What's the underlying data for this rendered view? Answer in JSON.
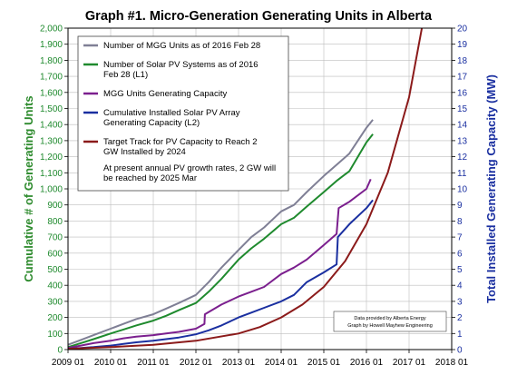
{
  "chart_data": {
    "type": "line",
    "title": "Graph #1. Micro-Generation Generating Units in Alberta",
    "ylabel": "Cumulative # of Generating Units",
    "ylabel_right": "Total Installed Generating Capacity (MW)",
    "xlim": [
      2009,
      2018
    ],
    "ylim": [
      0,
      2000
    ],
    "ylim_right": [
      0,
      20
    ],
    "x_ticks": [
      "2009 01",
      "2010 01",
      "2011 01",
      "2012 01",
      "2013 01",
      "2014 01",
      "2015 01",
      "2016 01",
      "2017 01",
      "2018 01"
    ],
    "y_ticks": [
      "0",
      "100",
      "200",
      "300",
      "400",
      "500",
      "600",
      "700",
      "800",
      "900",
      "1,000",
      "1,100",
      "1,200",
      "1,300",
      "1,400",
      "1,500",
      "1,600",
      "1,700",
      "1,800",
      "1,900",
      "2,000"
    ],
    "y2_ticks": [
      "0",
      "1",
      "2",
      "3",
      "4",
      "5",
      "6",
      "7",
      "8",
      "9",
      "10",
      "11",
      "12",
      "13",
      "14",
      "15",
      "16",
      "17",
      "18",
      "19",
      "20"
    ],
    "grid": true,
    "legend_position": "top-left",
    "legend_items": [
      {
        "label": "Number of MGG Units as of 2016 Feb 28",
        "color": "#7f7f95"
      },
      {
        "label": "Number of Solar PV Systems as of 2016 Feb 28 (L1)",
        "color": "#1f8a2e"
      },
      {
        "label": "MGG Units Generating Capacity",
        "color": "#7b1f8e"
      },
      {
        "label": "Cumulative Installed Solar PV Array Generating Capacity (L2)",
        "color": "#1a2fa0"
      },
      {
        "label": "Target Track for PV Capacity to Reach 2 GW Installed by 2024",
        "color": "#8b1a1a"
      }
    ],
    "annotation": "At present annual PV growth rates, 2 GW will be reached by 2025 Mar",
    "credits": [
      "Data provided by Alberta Energy",
      "Graph by Howell Mayhew Engineering"
    ],
    "series": [
      {
        "axis": "left",
        "color": "#7f7f95",
        "x": [
          2009.0,
          2009.3,
          2009.6,
          2010.0,
          2010.3,
          2010.6,
          2011.0,
          2011.3,
          2011.6,
          2012.0,
          2012.3,
          2012.6,
          2013.0,
          2013.3,
          2013.6,
          2014.0,
          2014.3,
          2014.6,
          2015.0,
          2015.3,
          2015.6,
          2016.0,
          2016.15
        ],
        "values": [
          30,
          60,
          90,
          130,
          160,
          190,
          220,
          255,
          290,
          340,
          420,
          510,
          620,
          700,
          760,
          860,
          900,
          980,
          1080,
          1150,
          1220,
          1380,
          1430
        ]
      },
      {
        "axis": "left",
        "color": "#1f8a2e",
        "x": [
          2009.0,
          2009.3,
          2009.6,
          2010.0,
          2010.3,
          2010.6,
          2011.0,
          2011.3,
          2011.6,
          2012.0,
          2012.3,
          2012.6,
          2013.0,
          2013.3,
          2013.6,
          2014.0,
          2014.3,
          2014.6,
          2015.0,
          2015.3,
          2015.6,
          2016.0,
          2016.15
        ],
        "values": [
          15,
          40,
          65,
          100,
          125,
          150,
          180,
          210,
          245,
          290,
          360,
          440,
          560,
          630,
          690,
          780,
          820,
          890,
          980,
          1050,
          1110,
          1290,
          1340
        ]
      },
      {
        "axis": "right",
        "color": "#7b1f8e",
        "x": [
          2009.0,
          2009.3,
          2009.6,
          2010.0,
          2010.3,
          2010.6,
          2011.0,
          2011.3,
          2011.6,
          2012.0,
          2012.2,
          2012.21,
          2012.6,
          2013.0,
          2013.3,
          2013.6,
          2014.0,
          2014.3,
          2014.6,
          2015.0,
          2015.3,
          2015.35,
          2015.6,
          2016.0,
          2016.1
        ],
        "values": [
          0.1,
          0.25,
          0.4,
          0.55,
          0.7,
          0.8,
          0.9,
          1.0,
          1.1,
          1.3,
          1.6,
          2.2,
          2.8,
          3.3,
          3.6,
          3.9,
          4.7,
          5.1,
          5.6,
          6.5,
          7.2,
          8.8,
          9.2,
          10.0,
          10.6
        ]
      },
      {
        "axis": "right",
        "color": "#1a2fa0",
        "x": [
          2009.0,
          2009.3,
          2009.6,
          2010.0,
          2010.3,
          2010.6,
          2011.0,
          2011.3,
          2011.6,
          2012.0,
          2012.3,
          2012.6,
          2013.0,
          2013.3,
          2013.6,
          2014.0,
          2014.3,
          2014.6,
          2015.0,
          2015.3,
          2015.33,
          2015.6,
          2016.0,
          2016.15
        ],
        "values": [
          0.05,
          0.1,
          0.15,
          0.25,
          0.35,
          0.45,
          0.55,
          0.65,
          0.75,
          0.95,
          1.2,
          1.5,
          2.0,
          2.3,
          2.6,
          3.0,
          3.4,
          4.2,
          4.8,
          5.3,
          7.0,
          7.8,
          8.8,
          9.3
        ]
      },
      {
        "axis": "right",
        "color": "#8b1a1a",
        "x": [
          2009.0,
          2010.0,
          2011.0,
          2012.0,
          2013.0,
          2013.5,
          2014.0,
          2014.5,
          2015.0,
          2015.5,
          2016.0,
          2016.5,
          2017.0,
          2017.3
        ],
        "values": [
          0.05,
          0.15,
          0.3,
          0.55,
          1.0,
          1.4,
          2.0,
          2.8,
          3.9,
          5.5,
          7.8,
          11.0,
          15.7,
          20.0
        ]
      }
    ]
  }
}
